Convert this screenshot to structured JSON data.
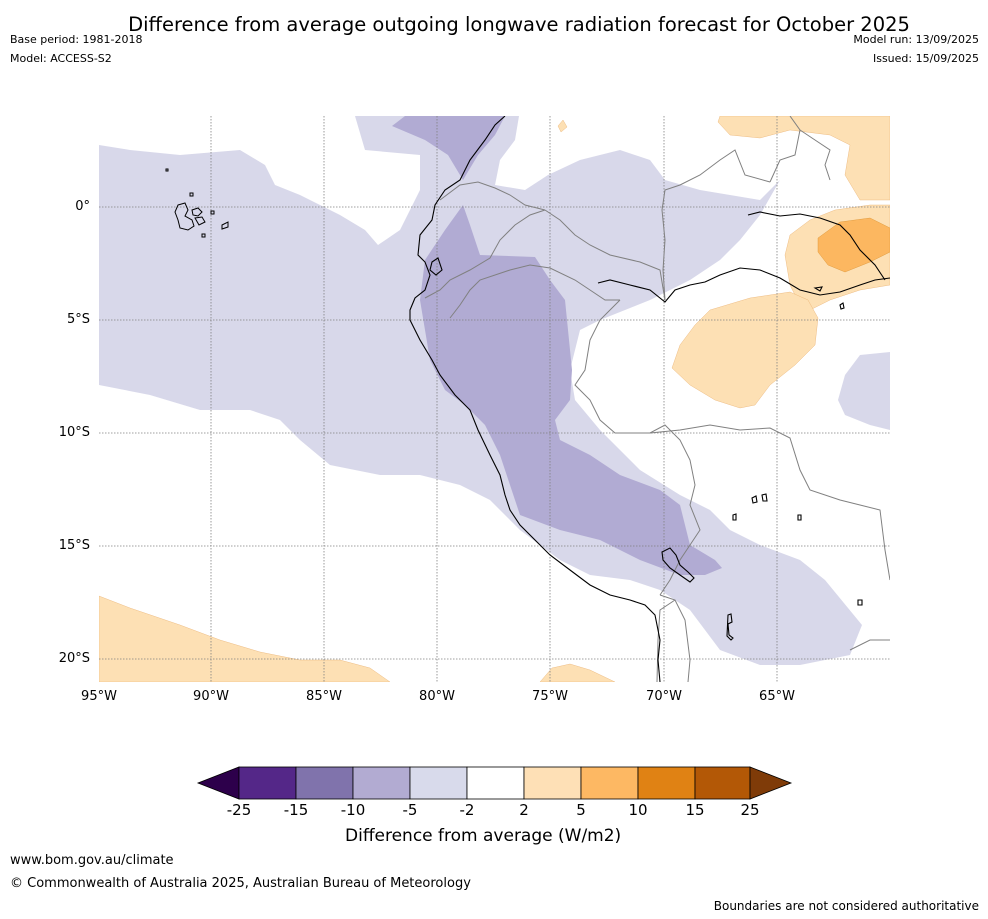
{
  "title": "Difference from average outgoing longwave radiation forecast for October 2025",
  "meta_left": {
    "base_period": "Base period: 1981-2018",
    "model": "Model: ACCESS-S2"
  },
  "meta_right": {
    "model_run": "Model run: 13/09/2025",
    "issued": "Issued: 15/09/2025"
  },
  "map": {
    "lat_labels": [
      "0°",
      "5°S",
      "10°S",
      "15°S",
      "20°S"
    ],
    "lon_labels": [
      "95°W",
      "90°W",
      "85°W",
      "80°W",
      "75°W",
      "70°W",
      "65°W"
    ],
    "colors": {
      "lt_purple": "#d8d8ea",
      "mid_purple": "#b1abd3",
      "lt_orange": "#fde0b4",
      "mid_orange": "#fcb760",
      "coast": "#000000",
      "border": "#808080"
    }
  },
  "colorbar": {
    "ticks": [
      "-25",
      "-15",
      "-10",
      "-5",
      "-2",
      "2",
      "5",
      "10",
      "15",
      "25"
    ],
    "colors": [
      "#2d004b",
      "#542788",
      "#8073ac",
      "#b2abd2",
      "#d8daeb",
      "#ffffff",
      "#fee0b6",
      "#fdb863",
      "#e08214",
      "#b35806",
      "#7f3b08"
    ],
    "title": "Difference from average (W/m2)"
  },
  "footer": {
    "url": "www.bom.gov.au/climate",
    "copyright": "© Commonwealth of Australia 2025, Australian Bureau of Meteorology",
    "disclaimer": "Boundaries are not considered authoritative"
  }
}
